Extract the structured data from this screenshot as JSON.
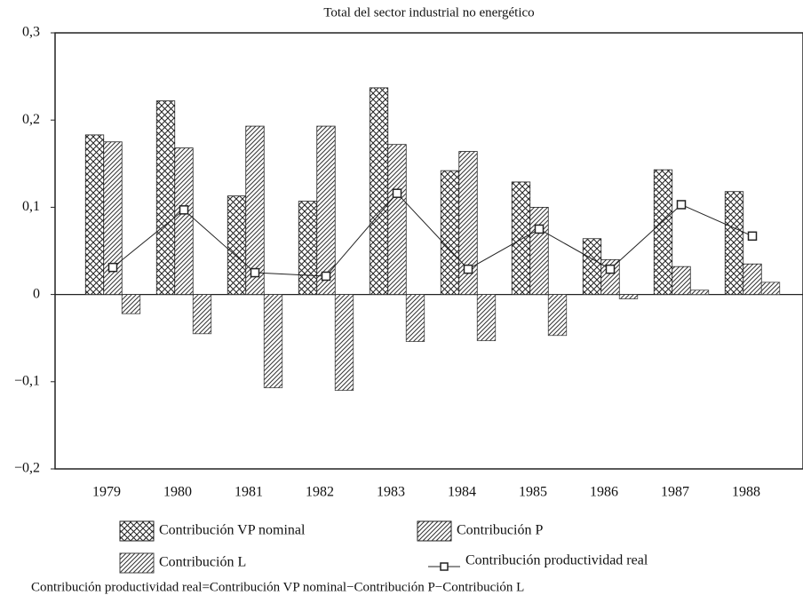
{
  "chart_data": {
    "type": "bar",
    "title": "Total del sector industrial no energético",
    "categories": [
      "1979",
      "1980",
      "1981",
      "1982",
      "1983",
      "1984",
      "1985",
      "1986",
      "1987",
      "1988"
    ],
    "series": [
      {
        "name": "Contribución VP nominal",
        "type": "bar",
        "pattern": "crosshatch",
        "color": "#222222",
        "values": [
          0.183,
          0.222,
          0.113,
          0.107,
          0.237,
          0.142,
          0.129,
          0.064,
          0.143,
          0.118
        ]
      },
      {
        "name": "Contribución P",
        "type": "bar",
        "pattern": "diagonal",
        "color": "#222222",
        "values": [
          0.175,
          0.168,
          0.193,
          0.193,
          0.172,
          0.164,
          0.1,
          0.04,
          0.032,
          0.035
        ]
      },
      {
        "name": "Contribución L",
        "type": "bar",
        "pattern": "diagonal",
        "color": "#444444",
        "values": [
          -0.022,
          -0.045,
          -0.107,
          -0.11,
          -0.054,
          -0.053,
          -0.047,
          -0.005,
          0.005,
          0.014
        ]
      },
      {
        "name": "Contribución productividad real",
        "type": "line",
        "color": "#222222",
        "values": [
          0.031,
          0.097,
          0.025,
          0.021,
          0.116,
          0.029,
          0.075,
          0.029,
          0.103,
          0.067
        ]
      }
    ],
    "ylim": [
      -0.2,
      0.3
    ],
    "yticks": [
      {
        "value": -0.2,
        "label": "−0,2"
      },
      {
        "value": -0.1,
        "label": "−0,1"
      },
      0,
      {
        "value": 0.1,
        "label": "0,1"
      },
      {
        "value": 0.2,
        "label": "0,2"
      },
      {
        "value": 0.3,
        "label": "0,3"
      }
    ],
    "note": "Contribución productividad real=Contribución VP nominal−Contribución P−Contribución L"
  }
}
